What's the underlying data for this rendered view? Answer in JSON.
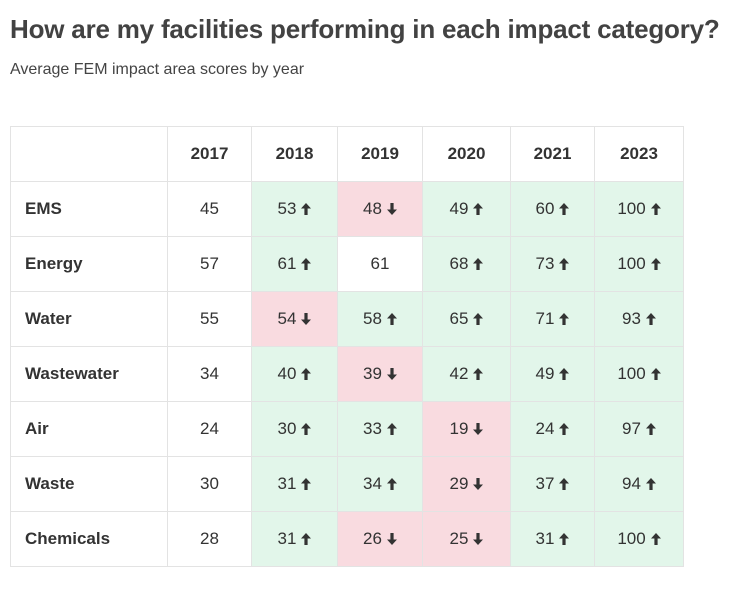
{
  "header": {
    "title": "How are my facilities performing in each impact category?",
    "subtitle": "Average FEM impact area scores by year"
  },
  "chart_data": {
    "type": "table",
    "title": "How are my facilities performing in each impact category?",
    "subtitle": "Average FEM impact area scores by year",
    "columns": [
      "2017",
      "2018",
      "2019",
      "2020",
      "2021",
      "2023"
    ],
    "rows": [
      {
        "category": "EMS",
        "values": [
          45,
          53,
          48,
          49,
          60,
          100
        ]
      },
      {
        "category": "Energy",
        "values": [
          57,
          61,
          61,
          68,
          73,
          100
        ]
      },
      {
        "category": "Water",
        "values": [
          55,
          54,
          58,
          65,
          71,
          93
        ]
      },
      {
        "category": "Wastewater",
        "values": [
          34,
          40,
          39,
          42,
          49,
          100
        ]
      },
      {
        "category": "Air",
        "values": [
          24,
          30,
          33,
          19,
          24,
          97
        ]
      },
      {
        "category": "Waste",
        "values": [
          30,
          31,
          34,
          29,
          37,
          94
        ]
      },
      {
        "category": "Chemicals",
        "values": [
          28,
          31,
          26,
          25,
          31,
          100
        ]
      }
    ],
    "colors": {
      "increase_bg": "#e2f6ea",
      "decrease_bg": "#f9dbe0",
      "unchanged_bg": "#ffffff",
      "arrow": "#333333"
    }
  }
}
